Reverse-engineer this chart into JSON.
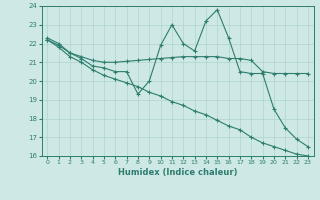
{
  "xlabel": "Humidex (Indice chaleur)",
  "xlim": [
    -0.5,
    23.5
  ],
  "ylim": [
    16,
    24
  ],
  "xticks": [
    0,
    1,
    2,
    3,
    4,
    5,
    6,
    7,
    8,
    9,
    10,
    11,
    12,
    13,
    14,
    15,
    16,
    17,
    18,
    19,
    20,
    21,
    22,
    23
  ],
  "yticks": [
    16,
    17,
    18,
    19,
    20,
    21,
    22,
    23,
    24
  ],
  "bg_color": "#cde8e5",
  "line_color": "#2e7d6e",
  "grid_color": "#afd4ce",
  "lines": [
    [
      22.3,
      22.0,
      21.5,
      21.2,
      20.8,
      20.7,
      20.5,
      20.5,
      19.3,
      20.0,
      21.9,
      23.0,
      22.0,
      21.6,
      23.2,
      23.8,
      22.3,
      20.5,
      20.4,
      20.4,
      18.5,
      17.5,
      16.9,
      16.5
    ],
    [
      22.2,
      21.9,
      21.5,
      21.3,
      21.1,
      21.0,
      21.0,
      21.05,
      21.1,
      21.15,
      21.2,
      21.25,
      21.3,
      21.3,
      21.3,
      21.3,
      21.2,
      21.2,
      21.1,
      20.5,
      20.4,
      20.4,
      20.4,
      20.4
    ],
    [
      22.2,
      21.8,
      21.3,
      21.0,
      20.6,
      20.3,
      20.1,
      19.9,
      19.7,
      19.4,
      19.2,
      18.9,
      18.7,
      18.4,
      18.2,
      17.9,
      17.6,
      17.4,
      17.0,
      16.7,
      16.5,
      16.3,
      16.1,
      16.0
    ]
  ]
}
